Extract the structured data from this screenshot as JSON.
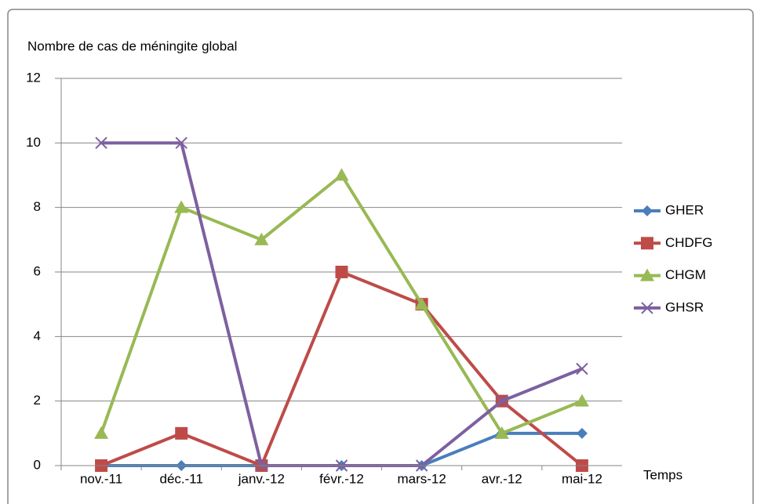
{
  "chart_data": {
    "type": "line",
    "title": "Nombre de cas de méningite global",
    "x_label": "Temps",
    "categories": [
      "nov.-11",
      "déc.-11",
      "janv.-12",
      "févr.-12",
      "mars-12",
      "avr.-12",
      "mai-12"
    ],
    "series": [
      {
        "name": "GHER",
        "color": "#4a7ebb",
        "marker": "diamond",
        "values": [
          0,
          0,
          0,
          0,
          0,
          1,
          1
        ]
      },
      {
        "name": "CHDFG",
        "color": "#be4b48",
        "marker": "square",
        "values": [
          0,
          1,
          0,
          6,
          5,
          2,
          0
        ]
      },
      {
        "name": "CHGM",
        "color": "#98b954",
        "marker": "triangle",
        "values": [
          1,
          8,
          7,
          9,
          5,
          1,
          2
        ]
      },
      {
        "name": "GHSR",
        "color": "#7d60a0",
        "marker": "x",
        "values": [
          10,
          10,
          0,
          0,
          0,
          2,
          3
        ]
      }
    ],
    "ylim": [
      0,
      12
    ],
    "yticks": [
      0,
      2,
      4,
      6,
      8,
      10,
      12
    ],
    "grid": true,
    "legend": "right"
  }
}
